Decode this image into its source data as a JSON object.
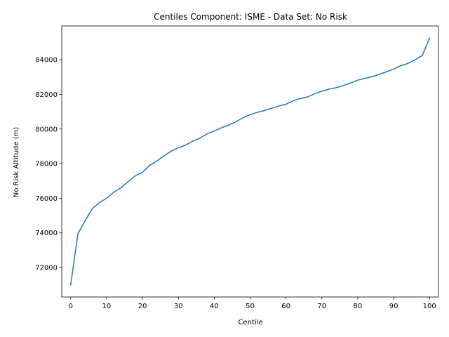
{
  "chart_data": {
    "type": "line",
    "title": "Centiles Component: ISME - Data Set: No Risk",
    "xlabel": "Centile",
    "ylabel": "No Risk Altitude (m)",
    "xlim": [
      -2.5,
      102.5
    ],
    "ylim": [
      70300,
      85950
    ],
    "xticks": [
      0,
      10,
      20,
      30,
      40,
      50,
      60,
      70,
      80,
      90,
      100
    ],
    "yticks": [
      72000,
      74000,
      76000,
      78000,
      80000,
      82000,
      84000
    ],
    "grid": false,
    "series": [
      {
        "color": "#1f77b4",
        "x": [
          0,
          2,
          4,
          6,
          8,
          10,
          12,
          14,
          16,
          18,
          20,
          22,
          24,
          26,
          28,
          30,
          32,
          34,
          36,
          38,
          40,
          42,
          44,
          46,
          48,
          50,
          52,
          54,
          56,
          58,
          60,
          62,
          64,
          66,
          68,
          70,
          72,
          74,
          76,
          78,
          80,
          82,
          84,
          86,
          88,
          90,
          92,
          94,
          96,
          98,
          100
        ],
        "y": [
          71000,
          73950,
          74700,
          75400,
          75750,
          76000,
          76350,
          76600,
          76950,
          77300,
          77500,
          77900,
          78150,
          78450,
          78720,
          78920,
          79070,
          79300,
          79470,
          79720,
          79880,
          80070,
          80220,
          80420,
          80650,
          80830,
          80960,
          81070,
          81200,
          81330,
          81430,
          81630,
          81760,
          81850,
          82040,
          82190,
          82300,
          82390,
          82510,
          82660,
          82820,
          82930,
          83020,
          83160,
          83300,
          83460,
          83660,
          83790,
          84000,
          84250,
          85250
        ]
      }
    ]
  }
}
